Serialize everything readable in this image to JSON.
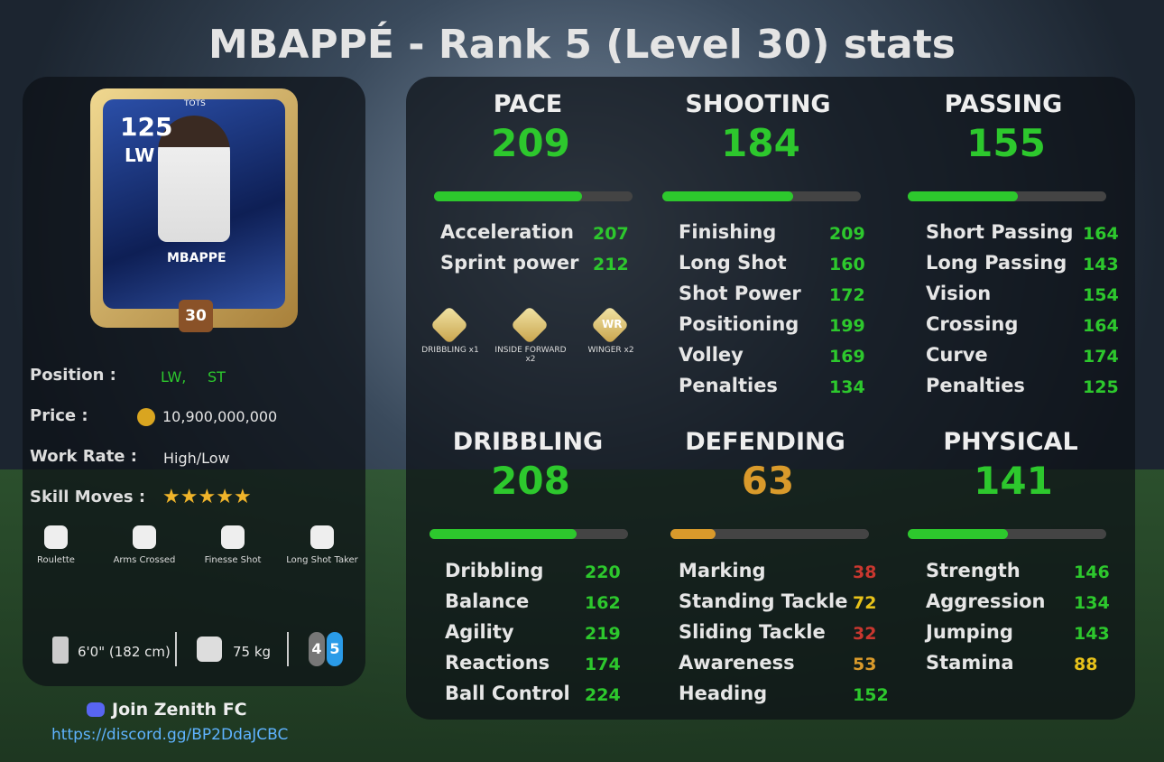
{
  "title": "MBAPPÉ - Rank 5 (Level 30) stats",
  "card": {
    "rating": "125",
    "position": "LW",
    "promo": "TOTS",
    "name": "MBAPPE",
    "level": "30"
  },
  "info": {
    "position_label": "Position :",
    "positions": [
      "LW,",
      "ST"
    ],
    "price_label": "Price :",
    "price": "10,900,000,000",
    "work_rate_label": "Work Rate :",
    "work_rate": "High/Low",
    "skill_moves_label": "Skill Moves :",
    "skill_moves": 5
  },
  "traits": [
    "Roulette",
    "Arms Crossed",
    "Finesse Shot",
    "Long Shot Taker"
  ],
  "body": {
    "height": "6'0\" (182 cm)",
    "weight": "75 kg",
    "weak_foot": "4",
    "skill": "5"
  },
  "discord": {
    "text": "Join Zenith FC",
    "link": "https://discord.gg/BP2DdaJCBC"
  },
  "bar_range": [
    0,
    280
  ],
  "groups": [
    {
      "name": "PACE",
      "value": 209,
      "color": "#2dc82d",
      "stats": [
        {
          "name": "Acceleration",
          "value": 207,
          "color": "#2dc82d"
        },
        {
          "name": "Sprint power",
          "value": 212,
          "color": "#2dc82d"
        }
      ],
      "playstyles": [
        {
          "badge": "",
          "label": "DRIBBLING x1"
        },
        {
          "badge": "",
          "label": "INSIDE FORWARD x2"
        },
        {
          "badge": "WR",
          "label": "WINGER x2"
        }
      ]
    },
    {
      "name": "SHOOTING",
      "value": 184,
      "color": "#2dc82d",
      "stats": [
        {
          "name": "Finishing",
          "value": 209,
          "color": "#2dc82d"
        },
        {
          "name": "Long Shot",
          "value": 160,
          "color": "#2dc82d"
        },
        {
          "name": "Shot Power",
          "value": 172,
          "color": "#2dc82d"
        },
        {
          "name": "Positioning",
          "value": 199,
          "color": "#2dc82d"
        },
        {
          "name": "Volley",
          "value": 169,
          "color": "#2dc82d"
        },
        {
          "name": "Penalties",
          "value": 134,
          "color": "#2dc82d"
        }
      ]
    },
    {
      "name": "PASSING",
      "value": 155,
      "color": "#2dc82d",
      "stats": [
        {
          "name": "Short Passing",
          "value": 164,
          "color": "#2dc82d"
        },
        {
          "name": "Long Passing",
          "value": 143,
          "color": "#2dc82d"
        },
        {
          "name": "Vision",
          "value": 154,
          "color": "#2dc82d"
        },
        {
          "name": "Crossing",
          "value": 164,
          "color": "#2dc82d"
        },
        {
          "name": "Curve",
          "value": 174,
          "color": "#2dc82d"
        },
        {
          "name": "Penalties",
          "value": 125,
          "color": "#2dc82d"
        }
      ]
    },
    {
      "name": "DRIBBLING",
      "value": 208,
      "color": "#2dc82d",
      "stats": [
        {
          "name": "Dribbling",
          "value": 220,
          "color": "#2dc82d"
        },
        {
          "name": "Balance",
          "value": 162,
          "color": "#2dc82d"
        },
        {
          "name": "Agility",
          "value": 219,
          "color": "#2dc82d"
        },
        {
          "name": "Reactions",
          "value": 174,
          "color": "#2dc82d"
        },
        {
          "name": "Ball Control",
          "value": 224,
          "color": "#2dc82d"
        }
      ]
    },
    {
      "name": "DEFENDING",
      "value": 63,
      "color": "#d99a2b",
      "stats": [
        {
          "name": "Marking",
          "value": 38,
          "color": "#c9372f"
        },
        {
          "name": "Standing Tackle",
          "value": 72,
          "color": "#e8c21a"
        },
        {
          "name": "Sliding Tackle",
          "value": 32,
          "color": "#c9372f"
        },
        {
          "name": "Awareness",
          "value": 53,
          "color": "#d99a2b"
        },
        {
          "name": "Heading",
          "value": 152,
          "color": "#2dc82d"
        }
      ]
    },
    {
      "name": "PHYSICAL",
      "value": 141,
      "color": "#2dc82d",
      "stats": [
        {
          "name": "Strength",
          "value": 146,
          "color": "#2dc82d"
        },
        {
          "name": "Aggression",
          "value": 134,
          "color": "#2dc82d"
        },
        {
          "name": "Jumping",
          "value": 143,
          "color": "#2dc82d"
        },
        {
          "name": "Stamina",
          "value": 88,
          "color": "#e8c21a"
        }
      ]
    }
  ]
}
